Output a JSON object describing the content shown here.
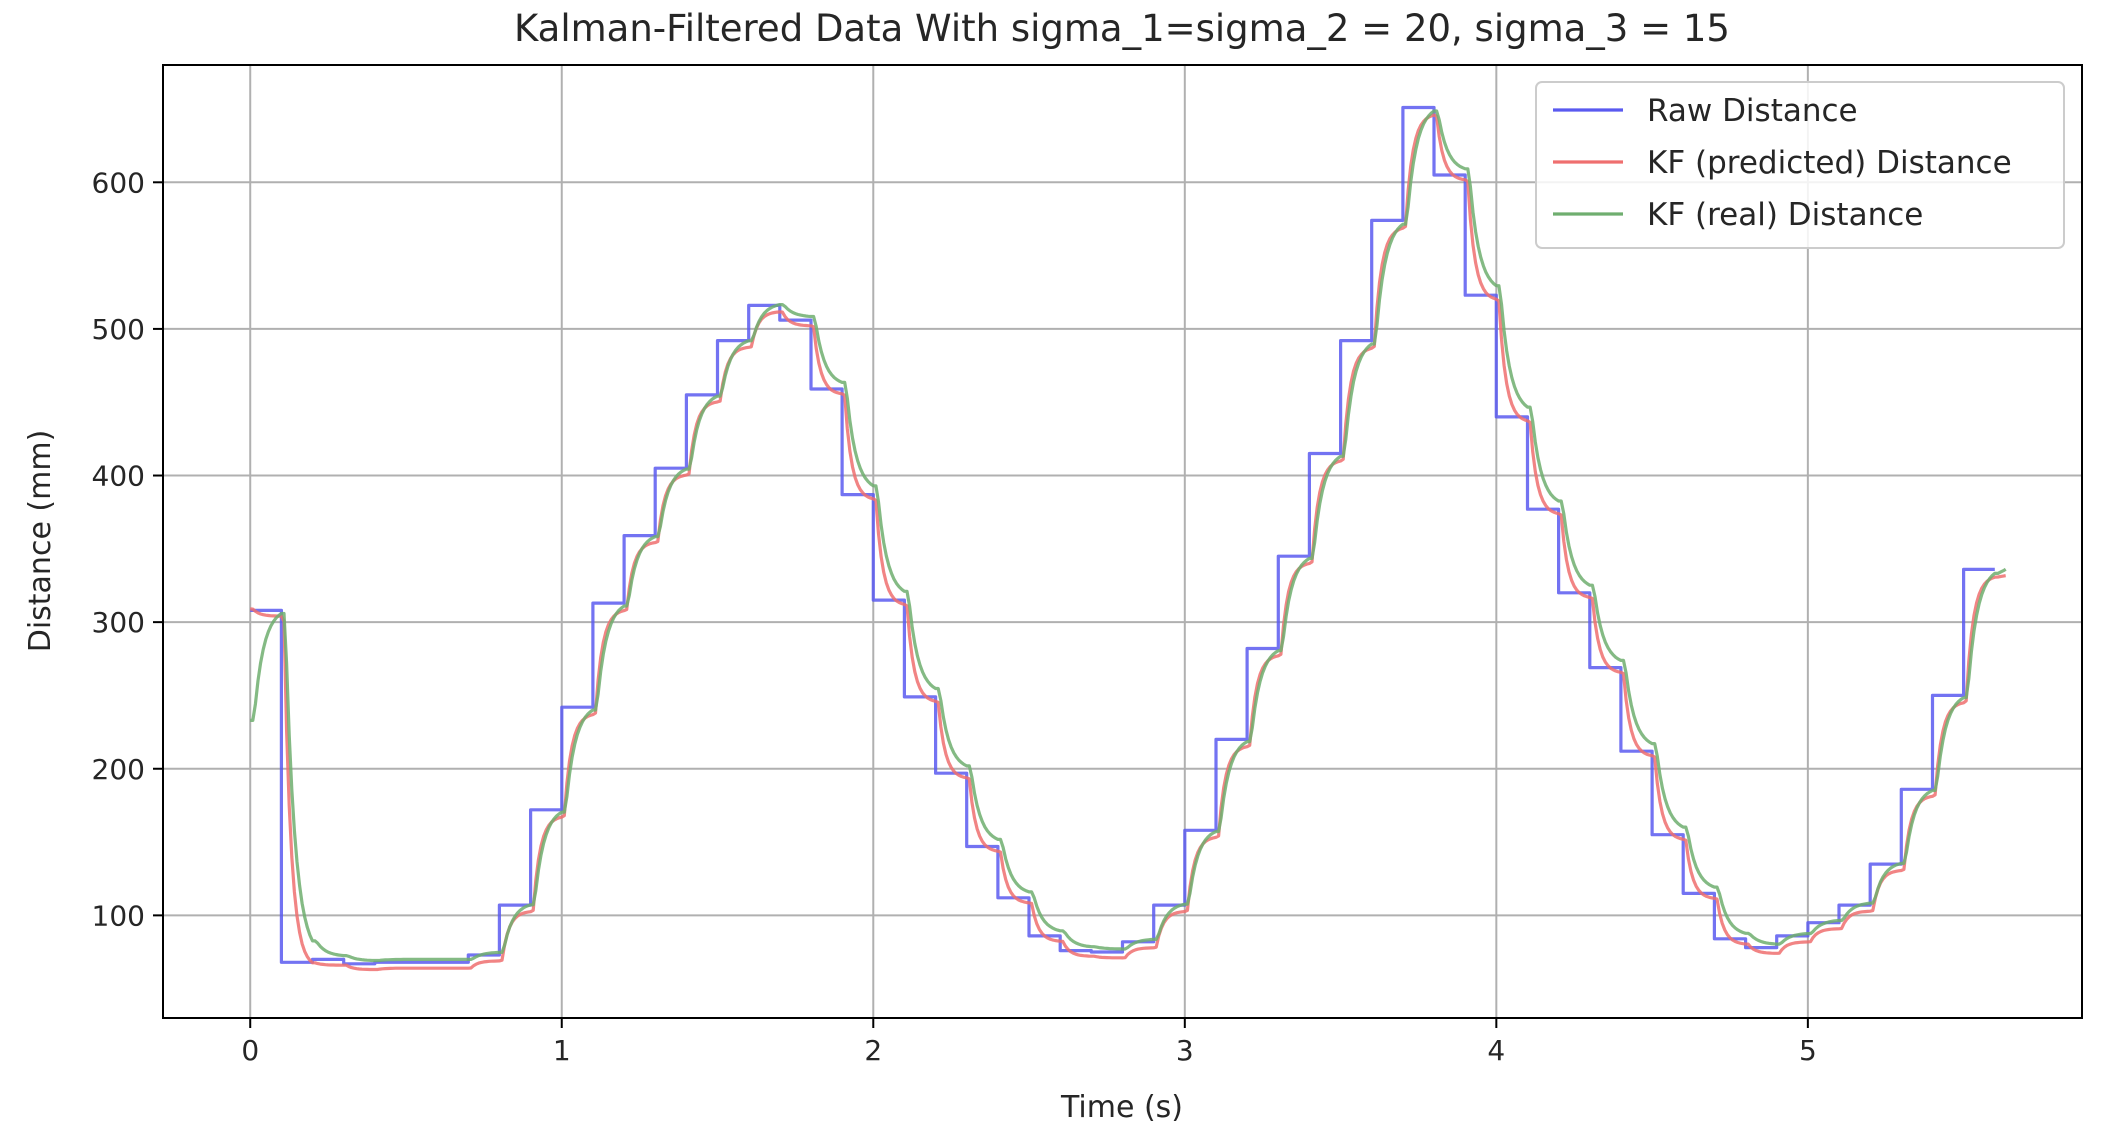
{
  "chart_data": {
    "type": "line",
    "title": "Kalman-Filtered Data With sigma_1=sigma_2 = 20, sigma_3 = 15",
    "xlabel": "Time (s)",
    "ylabel": "Distance (mm)",
    "xlim": [
      -0.28,
      5.88
    ],
    "ylim": [
      30,
      680
    ],
    "xticks": [
      0,
      1,
      2,
      3,
      4,
      5
    ],
    "yticks": [
      100,
      200,
      300,
      400,
      500,
      600
    ],
    "grid": true,
    "legend_position": "top-right",
    "sample_interval_s": 0.1,
    "series": [
      {
        "name": "Raw Distance",
        "color": "#5a5af0",
        "style": "step",
        "x": [
          0.0,
          0.1,
          0.2,
          0.3,
          0.4,
          0.5,
          0.6,
          0.7,
          0.8,
          0.9,
          1.0,
          1.1,
          1.2,
          1.3,
          1.4,
          1.5,
          1.6,
          1.7,
          1.8,
          1.9,
          2.0,
          2.1,
          2.2,
          2.3,
          2.4,
          2.5,
          2.6,
          2.7,
          2.8,
          2.9,
          3.0,
          3.1,
          3.2,
          3.3,
          3.4,
          3.5,
          3.6,
          3.7,
          3.8,
          3.9,
          4.0,
          4.1,
          4.2,
          4.3,
          4.4,
          4.5,
          4.6,
          4.7,
          4.8,
          4.9,
          5.0,
          5.1,
          5.2,
          5.3,
          5.4,
          5.5,
          5.6
        ],
        "y": [
          308,
          68,
          70,
          67,
          68,
          68,
          68,
          73,
          107,
          172,
          242,
          313,
          359,
          405,
          455,
          492,
          516,
          506,
          459,
          387,
          315,
          249,
          197,
          147,
          112,
          86,
          76,
          75,
          82,
          107,
          158,
          220,
          282,
          345,
          415,
          492,
          574,
          651,
          605,
          523,
          440,
          377,
          320,
          269,
          212,
          155,
          115,
          84,
          78,
          86,
          95,
          107,
          135,
          186,
          250,
          336,
          336
        ]
      },
      {
        "name": "KF (predicted) Distance",
        "color": "#ef6f6f",
        "style": "filtered",
        "initial": 309,
        "tau": 0.022,
        "delay": 0.008,
        "offset": -4,
        "x": [
          0.0,
          0.1,
          0.2,
          0.3,
          0.4,
          0.5,
          0.6,
          0.7,
          0.8,
          0.9,
          1.0,
          1.1,
          1.2,
          1.3,
          1.4,
          1.5,
          1.6,
          1.7,
          1.8,
          1.9,
          2.0,
          2.1,
          2.2,
          2.3,
          2.4,
          2.5,
          2.6,
          2.7,
          2.8,
          2.9,
          3.0,
          3.1,
          3.2,
          3.3,
          3.4,
          3.5,
          3.6,
          3.7,
          3.8,
          3.9,
          4.0,
          4.1,
          4.2,
          4.3,
          4.4,
          4.5,
          4.6,
          4.7,
          4.8,
          4.9,
          5.0,
          5.1,
          5.2,
          5.3,
          5.4,
          5.5,
          5.6
        ],
        "y": [
          308,
          68,
          70,
          67,
          68,
          68,
          68,
          73,
          107,
          172,
          242,
          313,
          359,
          405,
          455,
          492,
          516,
          506,
          459,
          387,
          315,
          249,
          197,
          147,
          112,
          86,
          76,
          75,
          82,
          107,
          158,
          220,
          282,
          345,
          415,
          492,
          574,
          651,
          605,
          523,
          440,
          377,
          320,
          269,
          212,
          155,
          115,
          84,
          78,
          86,
          95,
          107,
          135,
          186,
          250,
          336,
          336
        ]
      },
      {
        "name": "KF (real) Distance",
        "color": "#6fae6f",
        "style": "filtered",
        "initial": 233,
        "tau": 0.03,
        "delay": 0.012,
        "offset": 2,
        "x": [
          0.0,
          0.1,
          0.2,
          0.3,
          0.4,
          0.5,
          0.6,
          0.7,
          0.8,
          0.9,
          1.0,
          1.1,
          1.2,
          1.3,
          1.4,
          1.5,
          1.6,
          1.7,
          1.8,
          1.9,
          2.0,
          2.1,
          2.2,
          2.3,
          2.4,
          2.5,
          2.6,
          2.7,
          2.8,
          2.9,
          3.0,
          3.1,
          3.2,
          3.3,
          3.4,
          3.5,
          3.6,
          3.7,
          3.8,
          3.9,
          4.0,
          4.1,
          4.2,
          4.3,
          4.4,
          4.5,
          4.6,
          4.7,
          4.8,
          4.9,
          5.0,
          5.1,
          5.2,
          5.3,
          5.4,
          5.5,
          5.6
        ],
        "y": [
          308,
          68,
          70,
          67,
          68,
          68,
          68,
          73,
          107,
          172,
          242,
          313,
          359,
          405,
          455,
          492,
          516,
          506,
          459,
          387,
          315,
          249,
          197,
          147,
          112,
          86,
          76,
          75,
          82,
          107,
          158,
          220,
          282,
          345,
          415,
          492,
          574,
          651,
          605,
          523,
          440,
          377,
          320,
          269,
          212,
          155,
          115,
          84,
          78,
          86,
          95,
          107,
          135,
          186,
          250,
          336,
          336
        ]
      }
    ]
  }
}
